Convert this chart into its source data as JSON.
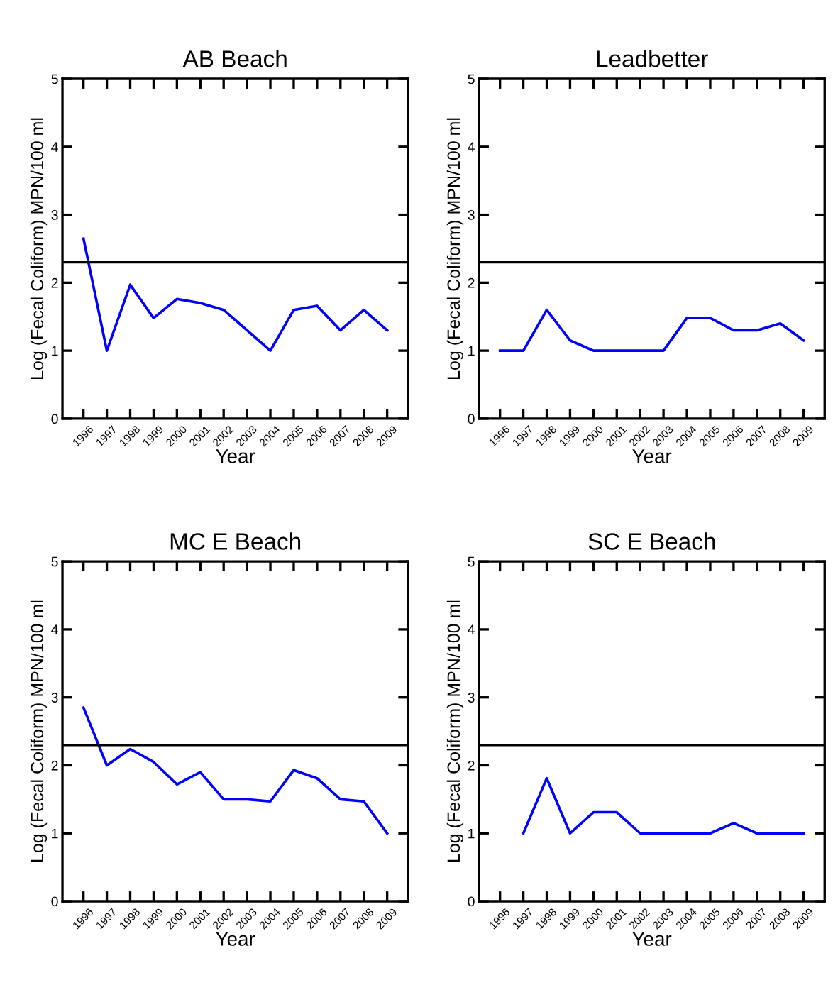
{
  "chart_data": [
    {
      "type": "line",
      "title": "AB Beach",
      "xlabel": "Year",
      "ylabel": "Log (Fecal Coliform) MPN/100 ml",
      "categories": [
        "1996",
        "1997",
        "1998",
        "1999",
        "2000",
        "2001",
        "2002",
        "2003",
        "2004",
        "2005",
        "2006",
        "2007",
        "2008",
        "2009"
      ],
      "ylim": [
        0,
        5
      ],
      "yticks": [
        0,
        1,
        2,
        3,
        4,
        5
      ],
      "grid": false,
      "legend": false,
      "marker": "none",
      "line_style": "solid",
      "series": [
        {
          "color": "#0000ff",
          "values": [
            2.65,
            1.0,
            1.97,
            1.48,
            1.76,
            1.7,
            1.6,
            1.3,
            1.0,
            1.6,
            1.66,
            1.3,
            1.6,
            1.3
          ]
        }
      ],
      "ref_lines": [
        {
          "axis": "y",
          "value": 2.3,
          "color": "#000000"
        }
      ]
    },
    {
      "type": "line",
      "title": "Leadbetter",
      "xlabel": "Year",
      "ylabel": "Log (Fecal Coliform) MPN/100 ml",
      "categories": [
        "1996",
        "1997",
        "1998",
        "1999",
        "2000",
        "2001",
        "2002",
        "2003",
        "2004",
        "2005",
        "2006",
        "2007",
        "2008",
        "2009"
      ],
      "ylim": [
        0,
        5
      ],
      "yticks": [
        0,
        1,
        2,
        3,
        4,
        5
      ],
      "grid": false,
      "legend": false,
      "marker": "none",
      "line_style": "solid",
      "series": [
        {
          "color": "#0000ff",
          "values": [
            1.0,
            1.0,
            1.6,
            1.15,
            1.0,
            1.0,
            1.0,
            1.0,
            1.48,
            1.48,
            1.3,
            1.3,
            1.4,
            1.15
          ]
        }
      ],
      "ref_lines": [
        {
          "axis": "y",
          "value": 2.3,
          "color": "#000000"
        }
      ]
    },
    {
      "type": "line",
      "title": "MC E Beach",
      "xlabel": "Year",
      "ylabel": "Log (Fecal Coliform) MPN/100 ml",
      "categories": [
        "1996",
        "1997",
        "1998",
        "1999",
        "2000",
        "2001",
        "2002",
        "2003",
        "2004",
        "2005",
        "2006",
        "2007",
        "2008",
        "2009"
      ],
      "ylim": [
        0,
        5
      ],
      "yticks": [
        0,
        1,
        2,
        3,
        4,
        5
      ],
      "grid": false,
      "legend": false,
      "marker": "none",
      "line_style": "solid",
      "series": [
        {
          "color": "#0000ff",
          "values": [
            2.85,
            2.0,
            2.24,
            2.05,
            1.72,
            1.9,
            1.5,
            1.5,
            1.47,
            1.93,
            1.81,
            1.5,
            1.47,
            1.0
          ]
        }
      ],
      "ref_lines": [
        {
          "axis": "y",
          "value": 2.3,
          "color": "#000000"
        }
      ]
    },
    {
      "type": "line",
      "title": "SC E Beach",
      "xlabel": "Year",
      "ylabel": "Log (Fecal Coliform) MPN/100 ml",
      "categories": [
        "1996",
        "1997",
        "1998",
        "1999",
        "2000",
        "2001",
        "2002",
        "2003",
        "2004",
        "2005",
        "2006",
        "2007",
        "2008",
        "2009"
      ],
      "ylim": [
        0,
        5
      ],
      "yticks": [
        0,
        1,
        2,
        3,
        4,
        5
      ],
      "grid": false,
      "legend": false,
      "marker": "none",
      "line_style": "solid",
      "series": [
        {
          "color": "#0000ff",
          "values": [
            null,
            1.0,
            1.81,
            1.0,
            1.31,
            1.31,
            1.0,
            1.0,
            1.0,
            1.0,
            1.15,
            1.0,
            1.0,
            1.0
          ]
        }
      ],
      "ref_lines": [
        {
          "axis": "y",
          "value": 2.3,
          "color": "#000000"
        }
      ]
    }
  ]
}
